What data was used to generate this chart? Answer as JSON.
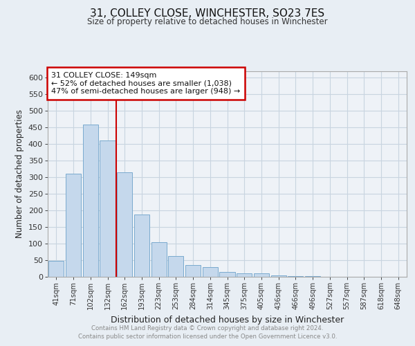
{
  "title": "31, COLLEY CLOSE, WINCHESTER, SO23 7ES",
  "subtitle": "Size of property relative to detached houses in Winchester",
  "xlabel": "Distribution of detached houses by size in Winchester",
  "ylabel": "Number of detached properties",
  "bar_color": "#c5d8ec",
  "bar_edge_color": "#7aaace",
  "background_color": "#e8eef4",
  "plot_bg_color": "#eef2f7",
  "grid_color": "#c8d4e0",
  "bins": [
    "41sqm",
    "71sqm",
    "102sqm",
    "132sqm",
    "162sqm",
    "193sqm",
    "223sqm",
    "253sqm",
    "284sqm",
    "314sqm",
    "345sqm",
    "375sqm",
    "405sqm",
    "436sqm",
    "466sqm",
    "496sqm",
    "527sqm",
    "557sqm",
    "587sqm",
    "618sqm",
    "648sqm"
  ],
  "values": [
    47,
    311,
    459,
    411,
    315,
    188,
    105,
    63,
    35,
    30,
    14,
    10,
    10,
    5,
    2,
    2,
    1,
    0,
    0,
    0,
    1
  ],
  "ylim": [
    0,
    620
  ],
  "yticks": [
    0,
    50,
    100,
    150,
    200,
    250,
    300,
    350,
    400,
    450,
    500,
    550,
    600
  ],
  "annotation_text": "31 COLLEY CLOSE: 149sqm\n← 52% of detached houses are smaller (1,038)\n47% of semi-detached houses are larger (948) →",
  "property_bin_index": 3.5,
  "red_line_color": "#cc0000",
  "footer_line1": "Contains HM Land Registry data © Crown copyright and database right 2024.",
  "footer_line2": "Contains public sector information licensed under the Open Government Licence v3.0."
}
